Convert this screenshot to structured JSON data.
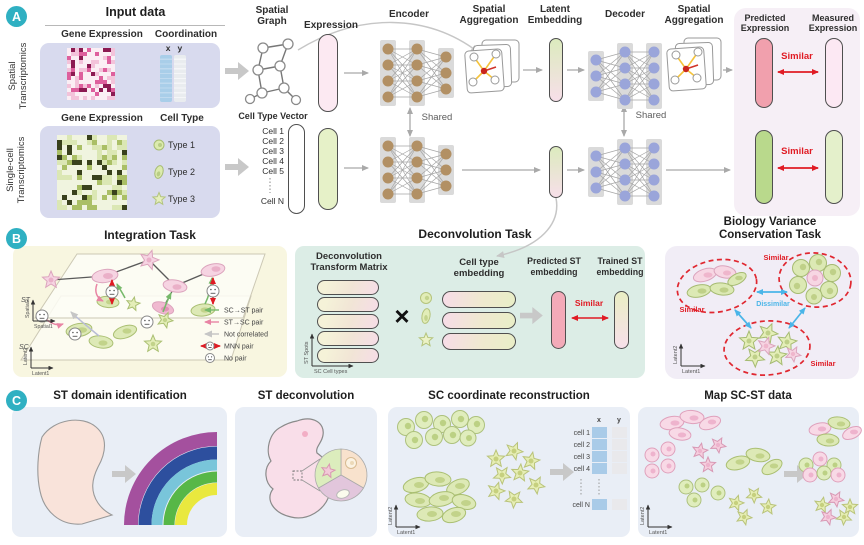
{
  "badges": {
    "a": "A",
    "b": "B",
    "c": "C"
  },
  "colors": {
    "badge_teal": "#2fb0c2",
    "similar_red": "#e01b24",
    "dissimilar_blue": "#4ab5e8",
    "panel_input": "#d8daee",
    "panel_expression_match": "#f6eff6",
    "panel_integration": "#f8f6e0",
    "panel_deconvolution": "#dcede6",
    "panel_biology": "#f1edf6",
    "panel_downstream": "#e9eef6"
  },
  "shared": {
    "gene_expression": "Gene Expression",
    "similar": "Similar",
    "shared": "Shared",
    "spatial_aggregation": "Spatial Aggregation",
    "latent1": "Latent1",
    "latent2": "Latent2"
  },
  "section_a": {
    "input_title": "Input data",
    "st_row_label": "Spatial\nTranscriptomics",
    "sc_row_label": "Single-cell\nTranscriptomics",
    "coordination": "Coordination",
    "cell_type": "Cell Type",
    "x": "x",
    "y": "y",
    "type1": "Type 1",
    "type2": "Type 2",
    "type3": "Type 3",
    "spatial_graph": "Spatial Graph",
    "cell_type_vector": "Cell Type Vector",
    "cell1": "Cell 1",
    "cell2": "Cell 2",
    "cell3": "Cell 3",
    "cell4": "Cell 4",
    "cell5": "Cell 5",
    "celln": "Cell N",
    "expression": "Expression",
    "encoder": "Encoder",
    "latent_embedding": "Latent Embedding",
    "decoder": "Decoder",
    "predicted_expression": "Predicted Expression",
    "measured_expression": "Measured Expression"
  },
  "section_b": {
    "integration_title": "Integration Task",
    "deconvolution_title": "Deconvolution Task",
    "biology_title_line1": "Biology Variance",
    "biology_title_line2": "Conservation Task",
    "st": "ST",
    "sc": "SC",
    "spatial1": "Spatial1",
    "spatial2": "Spatial2",
    "legend_sc_st": "SC→ST pair",
    "legend_st_sc": "ST→SC pair",
    "legend_not_correlated": "Not correlated",
    "legend_mnn": "MNN pair",
    "legend_no_pair": "No pair",
    "matrix_line1": "Deconvolution",
    "matrix_line2": "Transform Matrix",
    "st_spots": "ST Spots",
    "sc_cell_types": "SC Cell types",
    "times": "×",
    "cte_line1": "Cell type",
    "cte_line2": "embedding",
    "pred_line1": "Predicted ST",
    "pred_line2": "embedding",
    "train_line1": "Trained ST",
    "train_line2": "embedding",
    "dissimilar": "Dissimilar"
  },
  "section_c": {
    "t1": "ST domain identification",
    "t2": "ST deconvolution",
    "t3": "SC coordinate reconstruction",
    "t4": "Map SC-ST data",
    "x": "x",
    "y": "y",
    "cell1": "cell 1",
    "cell2": "cell 2",
    "cell3": "cell 3",
    "cell4": "cell 4",
    "celln": "cell N"
  }
}
